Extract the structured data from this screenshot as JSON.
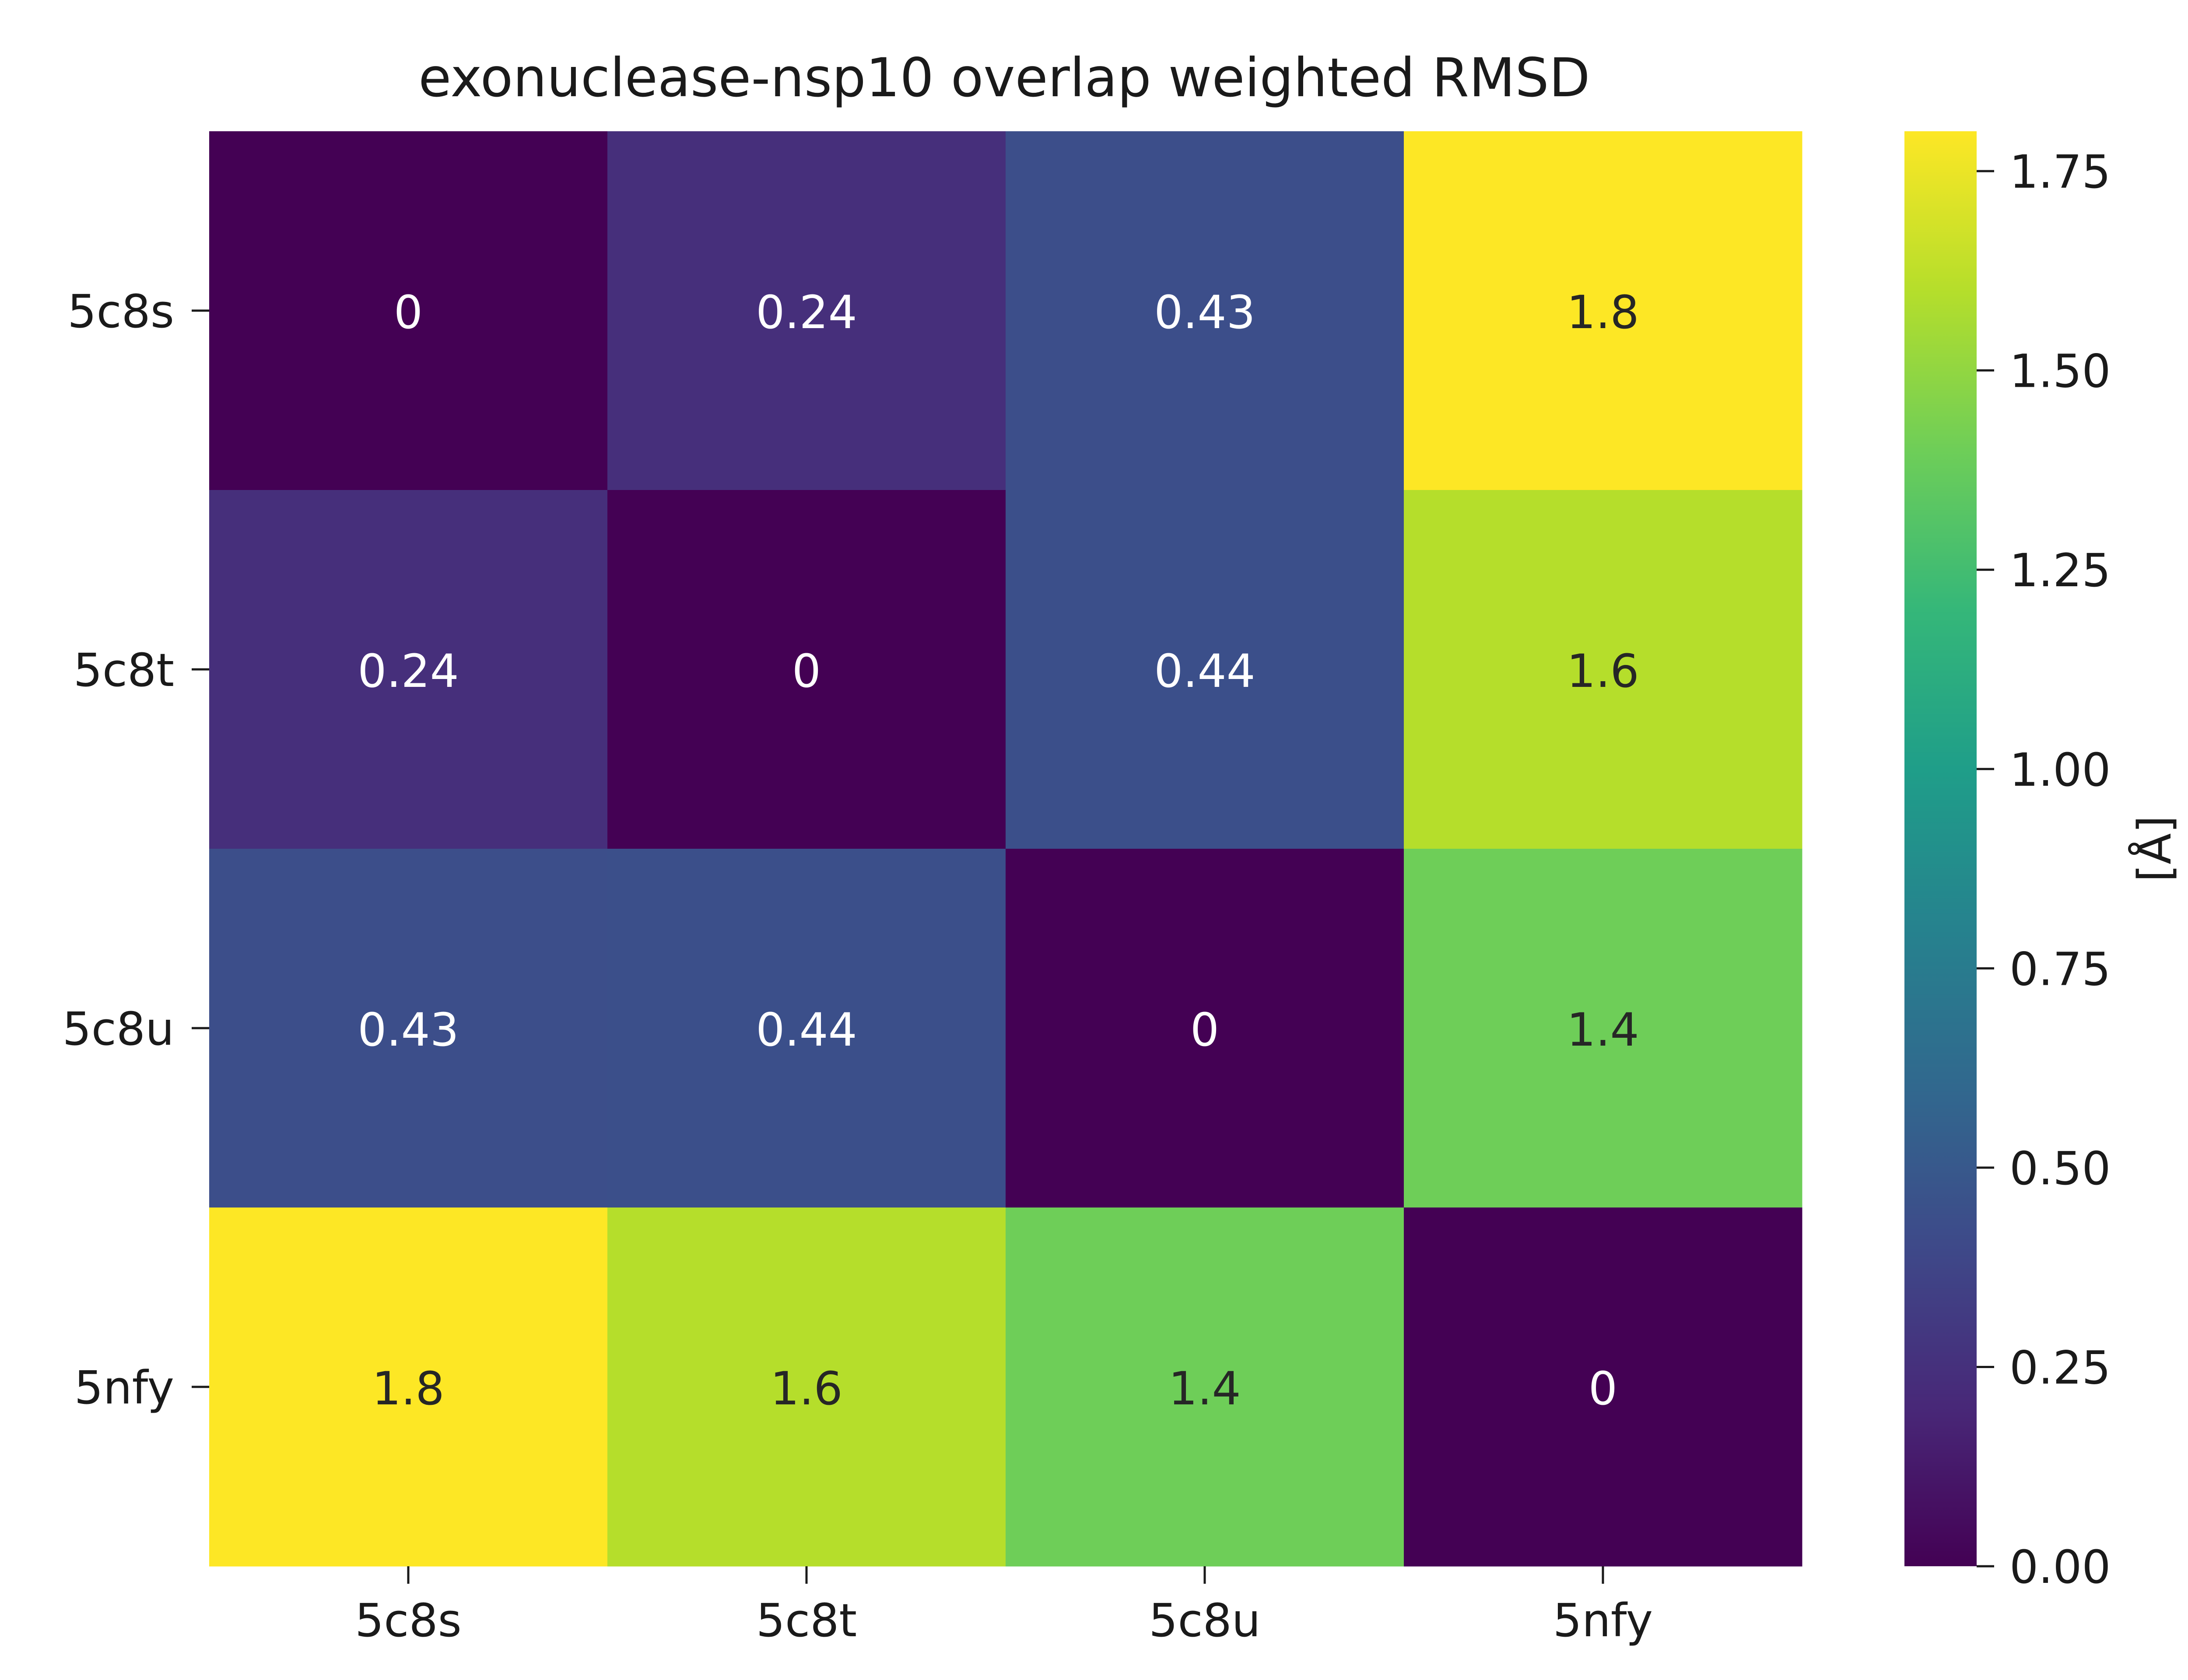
{
  "chart_data": {
    "type": "heatmap",
    "title": "exonuclease-nsp10 overlap weighted RMSD",
    "x_categories": [
      "5c8s",
      "5c8t",
      "5c8u",
      "5nfy"
    ],
    "y_categories": [
      "5c8s",
      "5c8t",
      "5c8u",
      "5nfy"
    ],
    "values": [
      [
        0,
        0.24,
        0.43,
        1.8
      ],
      [
        0.24,
        0,
        0.44,
        1.6
      ],
      [
        0.43,
        0.44,
        0,
        1.4
      ],
      [
        1.8,
        1.6,
        1.4,
        0
      ]
    ],
    "cell_labels": [
      [
        "0",
        "0.24",
        "0.43",
        "1.8"
      ],
      [
        "0.24",
        "0",
        "0.44",
        "1.6"
      ],
      [
        "0.43",
        "0.44",
        "0",
        "1.4"
      ],
      [
        "1.8",
        "1.6",
        "1.4",
        "0"
      ]
    ],
    "colorbar": {
      "label": "[Å]",
      "range": [
        0,
        1.8
      ],
      "ticks": [
        0,
        0.25,
        0.5,
        0.75,
        1.0,
        1.25,
        1.5,
        1.75
      ],
      "tick_labels": [
        "0.00",
        "0.25",
        "0.50",
        "0.75",
        "1.00",
        "1.25",
        "1.50",
        "1.75"
      ]
    },
    "colormap": "viridis",
    "colormap_stops": [
      "#440154",
      "#482878",
      "#3e4989",
      "#31688e",
      "#26828e",
      "#1f9e89",
      "#35b779",
      "#6ece58",
      "#b5de2b",
      "#fde725"
    ],
    "annotation_colors": {
      "dark_cell": "#ffffff",
      "light_cell": "#262626"
    },
    "grid": false,
    "legend": "colorbar-right"
  }
}
